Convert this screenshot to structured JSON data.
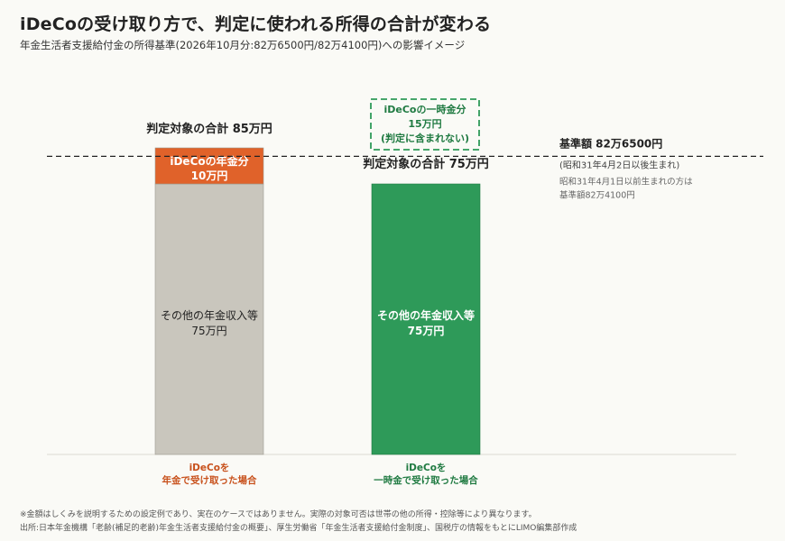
{
  "title": "iDeCoの受け取り方で、判定に使われる所得の合計が変わる",
  "subtitle": "年金生活者支援給付金の所得基準(2026年10月分:82万6500円/82万4100円)への影響イメージ",
  "colors": {
    "orange": "#e0622a",
    "gray": "#c9c6bd",
    "green": "#2e9a59",
    "dark_green": "#1f7a41",
    "orange_text": "#c8511c",
    "baseline": "#222222"
  },
  "chart_data": {
    "type": "bar",
    "stacked": true,
    "unit": "万円",
    "ylim": [
      0,
      100
    ],
    "threshold": {
      "value": 82.65,
      "label": "基準額 82万6500円",
      "note1": "(昭和31年4月2日以後生まれ)",
      "note2_line1": "昭和31年4月1日以前生まれの方は",
      "note2_line2": "基準額82万4100円"
    },
    "bars": [
      {
        "category_line1": "iDeCoを",
        "category_line2": "年金で受け取った場合",
        "total_label": "判定対象の合計 85万円",
        "total": 85,
        "segments": [
          {
            "label_line1": "その他の年金収入等",
            "label_line2": "75万円",
            "value": 75,
            "color": "#c9c6bd",
            "text_color": "#222222"
          },
          {
            "label_line1": "iDeCoの年金分",
            "label_line2": "10万円",
            "value": 10,
            "color": "#e0622a",
            "text_color": "#ffffff"
          }
        ]
      },
      {
        "category_line1": "iDeCoを",
        "category_line2": "一時金で受け取った場合",
        "total_label": "判定対象の合計 75万円",
        "total": 75,
        "segments": [
          {
            "label_line1": "その他の年金収入等",
            "label_line2": "75万円",
            "value": 75,
            "color": "#2e9a59",
            "text_color": "#ffffff"
          }
        ],
        "excluded": {
          "label_line1": "iDeCoの一時金分",
          "label_line2": "15万円",
          "label_line3": "(判定に含まれない)",
          "value": 15
        }
      }
    ]
  },
  "footnotes": {
    "line1": "※金額はしくみを説明するための設定例であり、実在のケースではありません。実際の対象可否は世帯の他の所得・控除等により異なります。",
    "line2": "出所:日本年金機構「老齢(補足的老齢)年金生活者支援給付金の概要」、厚生労働省「年金生活者支援給付金制度」、国税庁の情報をもとにLIMO編集部作成"
  }
}
